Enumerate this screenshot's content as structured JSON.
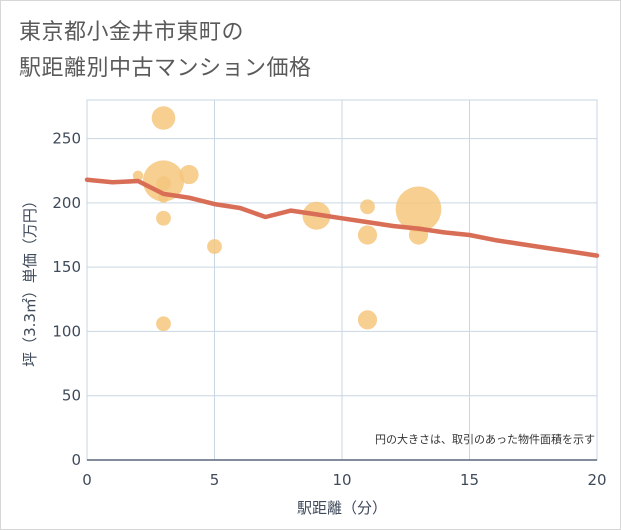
{
  "title_line1": "東京都小金井市東町の",
  "title_line2": "駅距離別中古マンション価格",
  "chart_data": {
    "type": "scatter",
    "title": "東京都小金井市東町の駅距離別中古マンション価格",
    "xlabel": "駅距離（分）",
    "ylabel": "坪（3.3㎡）単価（万円）",
    "xlim": [
      0,
      20
    ],
    "ylim": [
      0,
      280
    ],
    "xticks": [
      0,
      5,
      10,
      15,
      20
    ],
    "yticks": [
      0,
      50,
      100,
      150,
      200,
      250
    ],
    "grid": true,
    "note": "円の大きさは、取引のあった物件面積を示す",
    "bubble_series": [
      {
        "x": 2,
        "y": 221,
        "size": 1
      },
      {
        "x": 3,
        "y": 266,
        "size": 4
      },
      {
        "x": 3,
        "y": 217,
        "size": 8
      },
      {
        "x": 3,
        "y": 215,
        "size": 2
      },
      {
        "x": 3,
        "y": 204,
        "size": 1
      },
      {
        "x": 3,
        "y": 188,
        "size": 2
      },
      {
        "x": 3,
        "y": 106,
        "size": 2
      },
      {
        "x": 4,
        "y": 222,
        "size": 3
      },
      {
        "x": 5,
        "y": 166,
        "size": 2
      },
      {
        "x": 9,
        "y": 190,
        "size": 5
      },
      {
        "x": 11,
        "y": 197,
        "size": 2
      },
      {
        "x": 11,
        "y": 175,
        "size": 3
      },
      {
        "x": 11,
        "y": 109,
        "size": 3
      },
      {
        "x": 13,
        "y": 195,
        "size": 9
      },
      {
        "x": 13,
        "y": 175,
        "size": 3
      }
    ],
    "trend_line": {
      "x": [
        0,
        1,
        2,
        3,
        4,
        5,
        6,
        7,
        8,
        9,
        10,
        11,
        12,
        13,
        14,
        15,
        16,
        17,
        18,
        19,
        20
      ],
      "y": [
        218,
        216,
        217,
        207,
        204,
        199,
        196,
        189,
        194,
        191,
        188,
        185,
        182,
        180,
        177,
        175,
        171,
        168,
        165,
        162,
        159
      ]
    },
    "colors": {
      "bubble": "#f5c77e",
      "trend": "#d96e57",
      "grid": "#c9d6e3",
      "axis": "#5a6678"
    }
  }
}
